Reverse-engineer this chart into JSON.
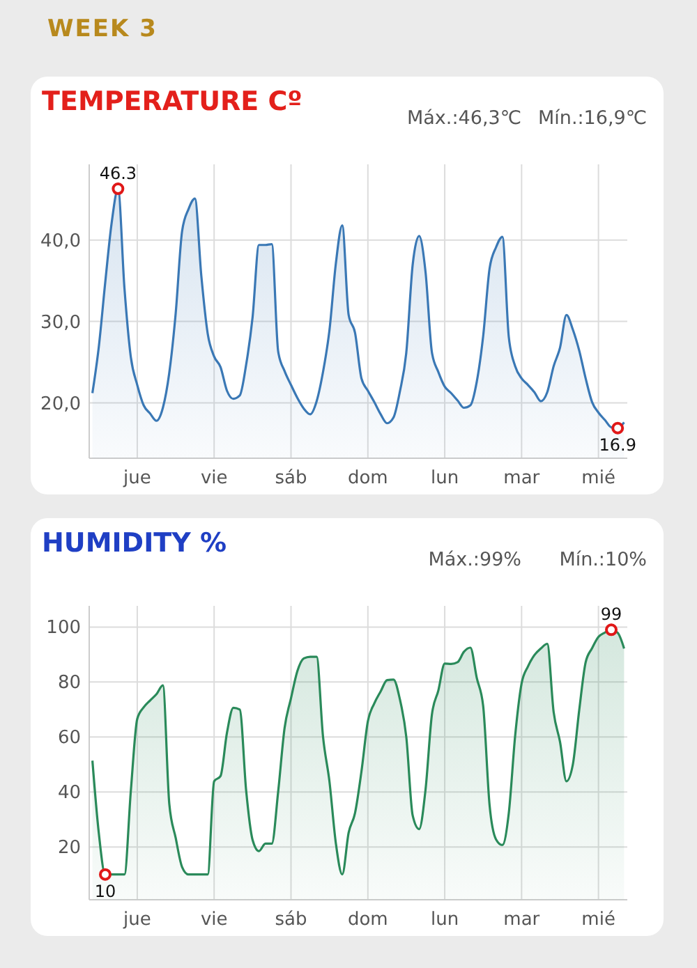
{
  "chart_data": [
    {
      "type": "area",
      "title": "TEMPERATURE Cº",
      "annotations": [
        "WEEK 3",
        "Máx.:46,3℃",
        "Mín.:16,9℃",
        {
          "text": "46.3",
          "y": 46.3
        },
        {
          "text": "16.9",
          "y": 16.9
        }
      ],
      "categories": [
        null,
        null,
        null,
        null,
        null,
        null,
        null,
        "jue",
        null,
        null,
        null,
        null,
        null,
        null,
        null,
        null,
        null,
        null,
        null,
        "vie",
        null,
        null,
        null,
        null,
        null,
        null,
        null,
        null,
        null,
        null,
        null,
        "sáb",
        null,
        null,
        null,
        null,
        null,
        null,
        null,
        null,
        null,
        null,
        null,
        "dom",
        null,
        null,
        null,
        null,
        null,
        null,
        null,
        null,
        null,
        null,
        null,
        "lun",
        null,
        null,
        null,
        null,
        null,
        null,
        null,
        null,
        null,
        null,
        null,
        "mar",
        null,
        null,
        null,
        null,
        null,
        null,
        null,
        null,
        null,
        null,
        null,
        "mié",
        null,
        null,
        null,
        null
      ],
      "ylim": [
        13.2,
        49.3
      ],
      "yticks": [
        {
          "value": 20,
          "label": "20,0"
        },
        {
          "value": 30,
          "label": "30,0"
        },
        {
          "value": 40,
          "label": "40,0"
        }
      ],
      "grid": true,
      "series": [
        {
          "color": "#3a78b5",
          "values": [
            21.2,
            26.9,
            34.8,
            42.1,
            46.3,
            34.1,
            25.6,
            22.2,
            19.7,
            18.7,
            17.8,
            19.4,
            23.7,
            31,
            41.1,
            43.8,
            45.1,
            35.6,
            28.5,
            25.7,
            24.4,
            21.5,
            20.5,
            20.9,
            24.7,
            30.5,
            39.4,
            39.4,
            39.5,
            26.3,
            23.9,
            22.2,
            20.6,
            19.3,
            18.6,
            20.2,
            23.8,
            28.9,
            37.1,
            41.8,
            30.8,
            28.6,
            23,
            21.5,
            20.1,
            18.6,
            17.5,
            18.2,
            21.4,
            26.2,
            37,
            40.5,
            36.1,
            26.2,
            23.8,
            22,
            21.2,
            20.3,
            19.4,
            19.7,
            22.6,
            28.2,
            36.5,
            39.1,
            40.4,
            28.1,
            24.5,
            23,
            22.2,
            21.3,
            20.2,
            21.3,
            24.5,
            26.8,
            30.8,
            29,
            26.4,
            23,
            20.1,
            18.8,
            17.9,
            17,
            16.9,
            17.6
          ]
        }
      ]
    },
    {
      "type": "area",
      "title": "HUMIDITY %",
      "annotations": [
        "Máx.:99%",
        "Mín.:10%",
        {
          "text": "10",
          "y": 10
        },
        {
          "text": "99",
          "y": 99
        }
      ],
      "categories": [
        null,
        null,
        null,
        null,
        null,
        null,
        null,
        "jue",
        null,
        null,
        null,
        null,
        null,
        null,
        null,
        null,
        null,
        null,
        null,
        "vie",
        null,
        null,
        null,
        null,
        null,
        null,
        null,
        null,
        null,
        null,
        null,
        "sáb",
        null,
        null,
        null,
        null,
        null,
        null,
        null,
        null,
        null,
        null,
        null,
        "dom",
        null,
        null,
        null,
        null,
        null,
        null,
        null,
        null,
        null,
        null,
        null,
        "lun",
        null,
        null,
        null,
        null,
        null,
        null,
        null,
        null,
        null,
        null,
        null,
        "mar",
        null,
        null,
        null,
        null,
        null,
        null,
        null,
        null,
        null,
        null,
        null,
        "mié",
        null,
        null,
        null,
        null
      ],
      "ylim": [
        0.8,
        107.7
      ],
      "yticks": [
        20,
        40,
        60,
        80,
        100
      ],
      "grid": true,
      "series": [
        {
          "color": "#2a8a5a",
          "values": [
            51.4,
            25,
            10,
            10,
            10,
            10,
            40.5,
            66.6,
            70.8,
            73.3,
            75.6,
            78.8,
            35.7,
            23.3,
            12.7,
            10,
            10,
            10,
            10,
            43.9,
            45.8,
            61.5,
            70.6,
            70,
            40.5,
            22.6,
            18.5,
            21.2,
            21.2,
            40.2,
            63.3,
            74.1,
            84,
            88.6,
            89.2,
            89.2,
            60.1,
            43.9,
            21.4,
            10,
            25.2,
            32.4,
            47.5,
            65.7,
            72.2,
            76.6,
            80.7,
            80.9,
            73.7,
            60,
            31.4,
            26.5,
            40.8,
            68.2,
            76.9,
            86.7,
            86.6,
            87.2,
            91,
            92.5,
            81.5,
            71.3,
            35.2,
            22.8,
            20.7,
            32.3,
            60.6,
            79.5,
            85.7,
            89.8,
            92.2,
            93.9,
            69.1,
            58.2,
            43.9,
            50,
            69.9,
            87.2,
            92.3,
            96.4,
            98,
            99,
            97.9,
            92.2
          ]
        }
      ]
    }
  ]
}
